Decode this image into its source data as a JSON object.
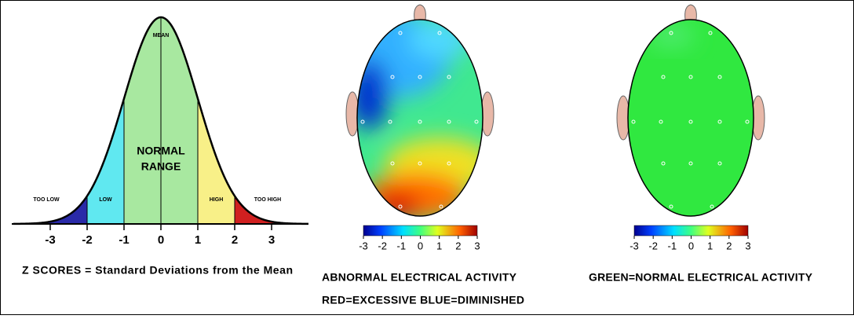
{
  "bell_curve": {
    "mean_label": "MEAN",
    "too_low": "TOO LOW",
    "low": "LOW",
    "normal_range": [
      "NORMAL",
      "RANGE"
    ],
    "high": "HIGH",
    "too_high": "TOO HIGH",
    "ticks": [
      -3,
      -2,
      -1,
      0,
      1,
      2,
      3
    ],
    "caption": "Z SCORES = Standard Deviations from the Mean"
  },
  "abnormal_map": {
    "colorbar_ticks": [
      -3,
      -2,
      -1,
      0,
      1,
      2,
      3
    ],
    "caption": [
      "ABNORMAL ELECTRICAL ACTIVITY",
      "RED=EXCESSIVE BLUE=DIMINISHED"
    ]
  },
  "normal_map": {
    "colorbar_ticks": [
      -3,
      -2,
      -1,
      0,
      1,
      2,
      3
    ],
    "caption": [
      "GREEN=NORMAL ELECTRICAL ACTIVITY"
    ]
  }
}
